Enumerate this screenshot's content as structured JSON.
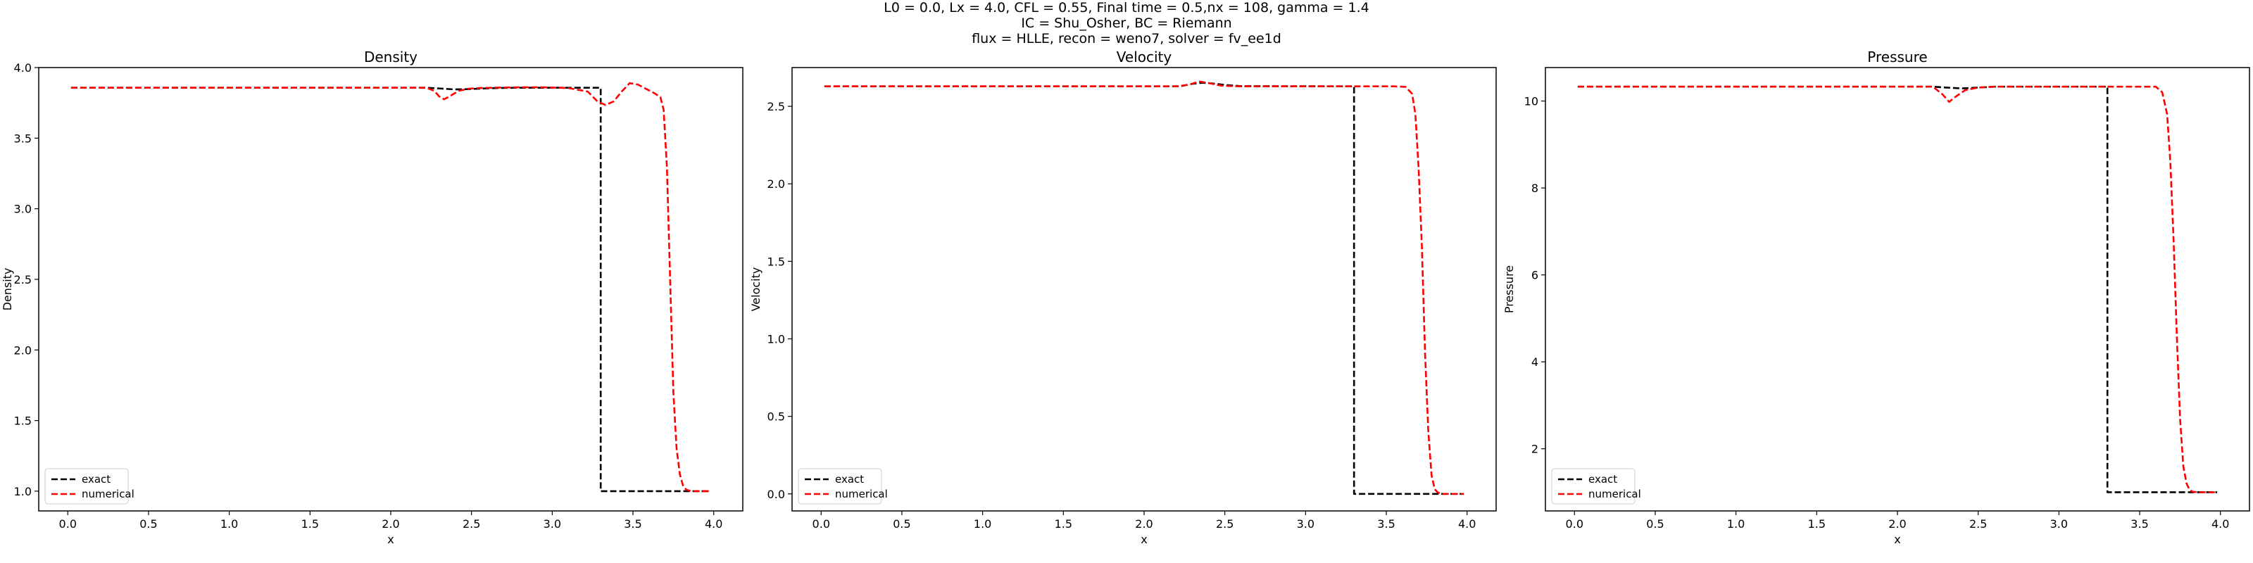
{
  "suptitle": [
    "L0 = 0.0, Lx = 4.0, CFL = 0.55, Final time = 0.5,nx = 108, gamma = 1.4",
    "IC = Shu_Osher, BC = Riemann",
    "flux = HLLE, recon = weno7, solver = fv_ee1d"
  ],
  "colors": {
    "exact": "#000000",
    "numerical": "#ff0000"
  },
  "chart_data": [
    {
      "type": "line",
      "title": "Density",
      "xlabel": "x",
      "ylabel": "Density",
      "xlim": [
        -0.18,
        4.18
      ],
      "ylim": [
        0.86,
        4.0
      ],
      "xticks": [
        "0.0",
        "0.5",
        "1.0",
        "1.5",
        "2.0",
        "2.5",
        "3.0",
        "3.5",
        "4.0"
      ],
      "yticks": [
        "1.0",
        "1.5",
        "2.0",
        "2.5",
        "3.0",
        "3.5",
        "4.0"
      ],
      "legend": {
        "position": "lower left",
        "entries": [
          "exact",
          "numerical"
        ]
      },
      "series": [
        {
          "name": "exact",
          "style": "dashed",
          "x": [
            0.02,
            2.22,
            2.3,
            2.4,
            2.5,
            2.6,
            2.7,
            2.8,
            2.9,
            3.0,
            3.1,
            3.2,
            3.28,
            3.3,
            3.3,
            3.98
          ],
          "y": [
            3.857,
            3.857,
            3.852,
            3.845,
            3.848,
            3.853,
            3.856,
            3.857,
            3.857,
            3.857,
            3.857,
            3.857,
            3.857,
            3.857,
            1.0,
            1.0
          ]
        },
        {
          "name": "numerical",
          "style": "dashed",
          "x": [
            0.02,
            2.22,
            2.27,
            2.3,
            2.33,
            2.37,
            2.42,
            2.48,
            2.55,
            2.65,
            2.8,
            2.95,
            3.1,
            3.22,
            3.28,
            3.33,
            3.38,
            3.43,
            3.48,
            3.53,
            3.58,
            3.63,
            3.67,
            3.69,
            3.71,
            3.73,
            3.75,
            3.77,
            3.79,
            3.81,
            3.83,
            3.86,
            3.98
          ],
          "y": [
            3.857,
            3.857,
            3.835,
            3.795,
            3.775,
            3.8,
            3.835,
            3.85,
            3.855,
            3.858,
            3.86,
            3.86,
            3.855,
            3.83,
            3.76,
            3.735,
            3.76,
            3.83,
            3.89,
            3.88,
            3.85,
            3.82,
            3.79,
            3.7,
            3.3,
            2.5,
            1.7,
            1.3,
            1.12,
            1.04,
            1.01,
            1.0,
            1.0
          ]
        }
      ]
    },
    {
      "type": "line",
      "title": "Velocity",
      "xlabel": "x",
      "ylabel": "Velocity",
      "xlim": [
        -0.18,
        4.18
      ],
      "ylim": [
        -0.11,
        2.75
      ],
      "xticks": [
        "0.0",
        "0.5",
        "1.0",
        "1.5",
        "2.0",
        "2.5",
        "3.0",
        "3.5",
        "4.0"
      ],
      "yticks": [
        "0.0",
        "0.5",
        "1.0",
        "1.5",
        "2.0",
        "2.5"
      ],
      "legend": {
        "position": "lower left",
        "entries": [
          "exact",
          "numerical"
        ]
      },
      "series": [
        {
          "name": "exact",
          "style": "dashed",
          "x": [
            0.02,
            2.22,
            2.3,
            2.36,
            2.42,
            2.5,
            2.6,
            3.28,
            3.3,
            3.3,
            3.98
          ],
          "y": [
            2.629,
            2.629,
            2.645,
            2.652,
            2.648,
            2.638,
            2.63,
            2.629,
            2.629,
            0.0,
            0.0
          ]
        },
        {
          "name": "numerical",
          "style": "dashed",
          "x": [
            0.02,
            2.2,
            2.28,
            2.34,
            2.4,
            2.48,
            2.6,
            3.0,
            3.55,
            3.62,
            3.66,
            3.68,
            3.7,
            3.72,
            3.74,
            3.76,
            3.78,
            3.8,
            3.82,
            3.85,
            3.98
          ],
          "y": [
            2.629,
            2.629,
            2.64,
            2.66,
            2.65,
            2.633,
            2.629,
            2.629,
            2.629,
            2.625,
            2.58,
            2.45,
            2.1,
            1.6,
            0.9,
            0.4,
            0.12,
            0.03,
            0.008,
            0.0,
            0.0
          ]
        }
      ]
    },
    {
      "type": "line",
      "title": "Pressure",
      "xlabel": "x",
      "ylabel": "Pressure",
      "xlim": [
        -0.18,
        4.18
      ],
      "ylim": [
        0.57,
        10.77
      ],
      "xticks": [
        "0.0",
        "0.5",
        "1.0",
        "1.5",
        "2.0",
        "2.5",
        "3.0",
        "3.5",
        "4.0"
      ],
      "yticks": [
        "2",
        "4",
        "6",
        "8",
        "10"
      ],
      "legend": {
        "position": "lower left",
        "entries": [
          "exact",
          "numerical"
        ]
      },
      "series": [
        {
          "name": "exact",
          "style": "dashed",
          "x": [
            0.02,
            2.22,
            2.3,
            2.4,
            2.5,
            2.6,
            3.28,
            3.3,
            3.3,
            3.98
          ],
          "y": [
            10.33,
            10.33,
            10.31,
            10.29,
            10.31,
            10.33,
            10.33,
            10.33,
            1.0,
            1.0
          ]
        },
        {
          "name": "numerical",
          "style": "dashed",
          "x": [
            0.02,
            2.22,
            2.28,
            2.32,
            2.36,
            2.42,
            2.5,
            2.6,
            2.8,
            3.6,
            3.64,
            3.67,
            3.69,
            3.71,
            3.73,
            3.75,
            3.77,
            3.79,
            3.81,
            3.83,
            3.86,
            3.98
          ],
          "y": [
            10.33,
            10.33,
            10.15,
            9.98,
            10.1,
            10.25,
            10.31,
            10.33,
            10.33,
            10.33,
            10.2,
            9.7,
            8.6,
            6.8,
            4.6,
            2.7,
            1.6,
            1.2,
            1.05,
            1.01,
            1.0,
            1.0
          ]
        }
      ]
    }
  ]
}
